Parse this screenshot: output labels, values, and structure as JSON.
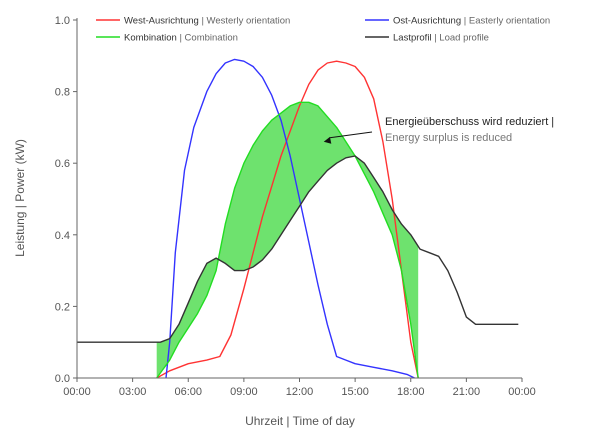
{
  "chart_data": {
    "type": "line",
    "xlabel": "Uhrzeit | Time of day",
    "ylabel": "Leistung | Power (kW)",
    "xlim": [
      0,
      24
    ],
    "ylim": [
      0,
      1.0
    ],
    "x_ticks": [
      0,
      3,
      6,
      9,
      12,
      15,
      18,
      21,
      24
    ],
    "x_tick_labels": [
      "00:00",
      "03:00",
      "06:00",
      "09:00",
      "12:00",
      "15:00",
      "18:00",
      "21:00",
      "00:00"
    ],
    "y_ticks": [
      0,
      0.2,
      0.4,
      0.6,
      0.8,
      1.0
    ],
    "y_tick_labels": [
      "0.0",
      "0.2",
      "0.4",
      "0.6",
      "0.8",
      "1.0"
    ],
    "grid": false,
    "legend_position": "top",
    "series": [
      {
        "name_de": "West-Ausrichtung",
        "name_en": "Westerly orientation",
        "color": "#ff3333",
        "x": [
          4.3,
          5.0,
          6.0,
          7.0,
          7.7,
          8.3,
          9.0,
          10.0,
          11.0,
          12.0,
          12.5,
          13.0,
          13.5,
          14.0,
          14.5,
          15.0,
          15.5,
          16.0,
          16.5,
          17.0,
          17.5,
          18.0,
          18.4
        ],
        "y": [
          0.0,
          0.02,
          0.04,
          0.05,
          0.06,
          0.12,
          0.25,
          0.45,
          0.62,
          0.76,
          0.82,
          0.86,
          0.88,
          0.885,
          0.88,
          0.87,
          0.84,
          0.78,
          0.66,
          0.5,
          0.3,
          0.1,
          0.0
        ]
      },
      {
        "name_de": "Ost-Ausrichtung",
        "name_en": "Easterly orientation",
        "color": "#3333ff",
        "x": [
          4.8,
          5.0,
          5.3,
          5.8,
          6.3,
          7.0,
          7.5,
          8.0,
          8.5,
          9.0,
          9.5,
          10.0,
          10.5,
          11.0,
          11.5,
          12.0,
          12.5,
          13.0,
          13.5,
          14.0,
          14.5,
          15.0,
          16.0,
          17.0,
          17.8,
          18.2
        ],
        "y": [
          0.0,
          0.1,
          0.35,
          0.58,
          0.7,
          0.8,
          0.85,
          0.88,
          0.89,
          0.885,
          0.87,
          0.84,
          0.79,
          0.72,
          0.62,
          0.5,
          0.38,
          0.26,
          0.15,
          0.06,
          0.05,
          0.04,
          0.03,
          0.02,
          0.01,
          0.0
        ]
      },
      {
        "name_de": "Kombination",
        "name_en": "Combination",
        "color": "#22dd22",
        "x": [
          4.3,
          5.0,
          5.5,
          6.0,
          6.5,
          7.0,
          7.5,
          8.0,
          8.5,
          9.0,
          9.5,
          10.0,
          10.5,
          11.0,
          11.5,
          12.0,
          12.5,
          13.0,
          13.5,
          14.0,
          14.5,
          15.0,
          15.5,
          16.0,
          16.5,
          17.0,
          17.5,
          18.0,
          18.4
        ],
        "y": [
          0.0,
          0.05,
          0.1,
          0.14,
          0.18,
          0.23,
          0.3,
          0.43,
          0.53,
          0.6,
          0.65,
          0.69,
          0.72,
          0.74,
          0.76,
          0.77,
          0.77,
          0.76,
          0.73,
          0.7,
          0.66,
          0.62,
          0.57,
          0.52,
          0.46,
          0.4,
          0.3,
          0.15,
          0.0
        ]
      },
      {
        "name_de": "Lastprofil",
        "name_en": "Load profile",
        "color": "#333333",
        "x": [
          0.0,
          4.5,
          5.0,
          5.5,
          6.0,
          6.5,
          7.0,
          7.5,
          8.0,
          8.5,
          9.0,
          9.5,
          10.0,
          10.5,
          11.0,
          11.5,
          12.0,
          12.5,
          13.0,
          13.5,
          14.0,
          14.5,
          15.0,
          15.5,
          16.0,
          16.5,
          17.0,
          17.5,
          18.0,
          18.5,
          19.0,
          19.5,
          20.0,
          20.5,
          21.0,
          21.5,
          22.0,
          23.8
        ],
        "y": [
          0.1,
          0.1,
          0.11,
          0.15,
          0.21,
          0.27,
          0.32,
          0.335,
          0.32,
          0.3,
          0.3,
          0.31,
          0.33,
          0.36,
          0.4,
          0.44,
          0.48,
          0.52,
          0.55,
          0.58,
          0.6,
          0.615,
          0.62,
          0.6,
          0.56,
          0.52,
          0.47,
          0.43,
          0.4,
          0.36,
          0.35,
          0.34,
          0.3,
          0.24,
          0.17,
          0.15,
          0.15,
          0.15
        ]
      }
    ],
    "legend": [
      {
        "label_strong": "West-Ausrichtung",
        "label_light": " | Westerly orientation",
        "color": "#ff3333"
      },
      {
        "label_strong": "Ost-Ausrichtung",
        "label_light": " | Easterly orientation",
        "color": "#3333ff"
      },
      {
        "label_strong": "Kombination",
        "label_light": " | Combination",
        "color": "#22dd22"
      },
      {
        "label_strong": "Lastprofil",
        "label_light": " | Load profile",
        "color": "#333333"
      }
    ],
    "fill_between": {
      "series_a": "Kombination",
      "series_b": "Lastprofil",
      "color": "#55dd55"
    },
    "annotation": {
      "text_line1": "Energieüberschuss wird reduziert |",
      "text_line2": "Energy surplus is reduced",
      "point": [
        13.2,
        0.66
      ]
    }
  }
}
